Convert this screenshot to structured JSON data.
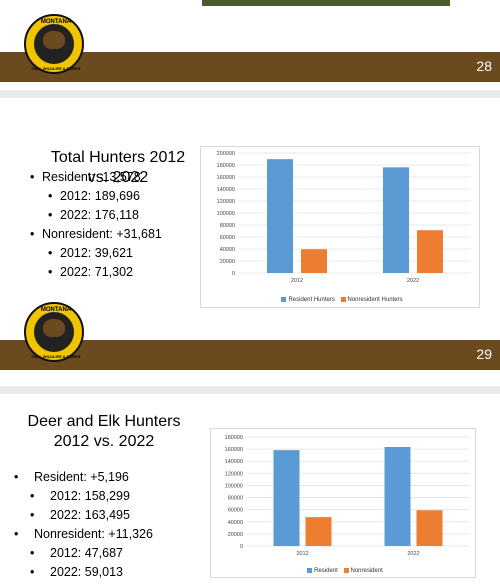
{
  "slides": {
    "s28": {
      "number": "28",
      "logo_text": "MONTANA",
      "logo_text2": "FISH, WILDLIFE & PARKS"
    },
    "s29": {
      "number": "29",
      "title": "Total Hunters 2012 vs. 2022",
      "bullets": {
        "resident": "Resident:  -13,578",
        "r2012": "2012: 189,696",
        "r2022": "2022: 176,118",
        "nonresident": "Nonresident: +31,681",
        "n2012": "2012: 39,621",
        "n2022": "2022: 71,302"
      }
    },
    "s30": {
      "title": "Deer and Elk Hunters 2012 vs. 2022",
      "bullets": {
        "resident": "Resident:  +5,196",
        "r2012": "2012: 158,299",
        "r2022": "2022: 163,495",
        "nonresident": "Nonresident: +11,326",
        "n2012": "2012: 47,687",
        "n2022": "2022: 59,013"
      }
    }
  },
  "colors": {
    "resident": "#5b9bd5",
    "nonresident": "#ed7d31",
    "band": "#6b4a1f",
    "logo": "#f2c400"
  },
  "chart_data": [
    {
      "type": "bar",
      "categories": [
        "2012",
        "2022"
      ],
      "series": [
        {
          "name": "Resident Hunters",
          "values": [
            189696,
            176118
          ]
        },
        {
          "name": "Nonresident Hunters",
          "values": [
            39621,
            71302
          ]
        }
      ],
      "ylim": [
        0,
        200000
      ],
      "yticks": [
        "0",
        "20000",
        "40000",
        "60000",
        "80000",
        "100000",
        "120000",
        "140000",
        "160000",
        "180000",
        "200000"
      ],
      "grid": true,
      "legend": "bottom"
    },
    {
      "type": "bar",
      "categories": [
        "2012",
        "2022"
      ],
      "series": [
        {
          "name": "Resident",
          "values": [
            158299,
            163495
          ]
        },
        {
          "name": "Nonresident",
          "values": [
            47687,
            59013
          ]
        }
      ],
      "ylim": [
        0,
        180000
      ],
      "yticks": [
        "0",
        "20000",
        "40000",
        "60000",
        "80000",
        "100000",
        "120000",
        "140000",
        "160000",
        "180000"
      ],
      "grid": true,
      "legend": "bottom"
    }
  ]
}
